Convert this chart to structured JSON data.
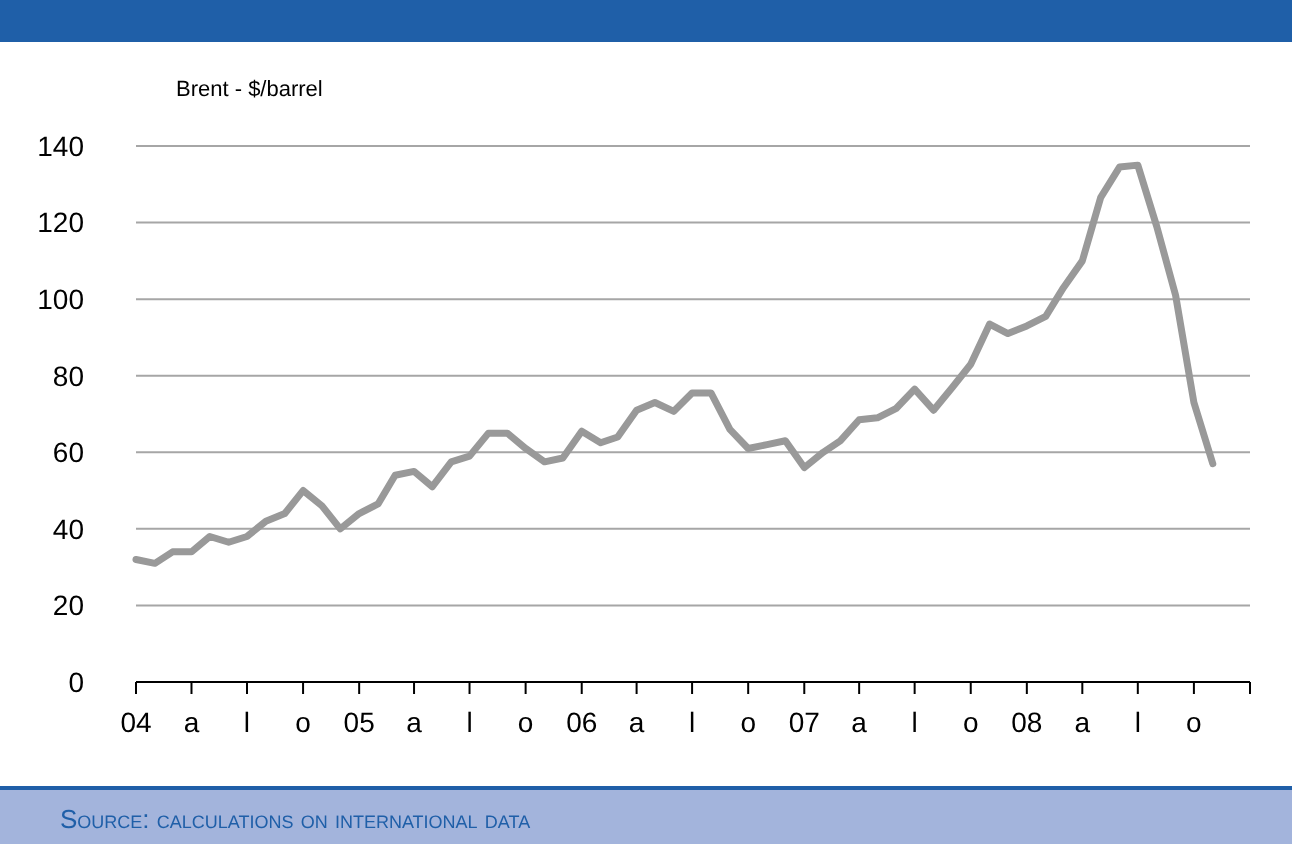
{
  "chart_data": {
    "type": "line",
    "ylabel": "Brent - $/barrel",
    "x": [
      "2004-01",
      "2004-02",
      "2004-03",
      "2004-04",
      "2004-05",
      "2004-06",
      "2004-07",
      "2004-08",
      "2004-09",
      "2004-10",
      "2004-11",
      "2004-12",
      "2005-01",
      "2005-02",
      "2005-03",
      "2005-04",
      "2005-05",
      "2005-06",
      "2005-07",
      "2005-08",
      "2005-09",
      "2005-10",
      "2005-11",
      "2005-12",
      "2006-01",
      "2006-02",
      "2006-03",
      "2006-04",
      "2006-05",
      "2006-06",
      "2006-07",
      "2006-08",
      "2006-09",
      "2006-10",
      "2006-11",
      "2006-12",
      "2007-01",
      "2007-02",
      "2007-03",
      "2007-04",
      "2007-05",
      "2007-06",
      "2007-07",
      "2007-08",
      "2007-09",
      "2007-10",
      "2007-11",
      "2007-12",
      "2008-01",
      "2008-02",
      "2008-03",
      "2008-04",
      "2008-05",
      "2008-06",
      "2008-07",
      "2008-08",
      "2008-09",
      "2008-10",
      "2008-11"
    ],
    "series": [
      {
        "color": "#999999",
        "values": [
          32,
          31,
          34,
          34,
          38,
          36.5,
          38,
          42,
          44,
          50,
          46,
          40,
          44,
          46.5,
          54,
          55,
          51,
          57.5,
          59,
          65,
          65,
          61,
          57.5,
          58.5,
          65.5,
          62.5,
          64,
          71,
          73,
          70.7,
          75.5,
          75.5,
          66,
          61,
          62,
          63,
          56,
          60,
          63,
          68.5,
          69,
          71.5,
          76.5,
          71,
          77,
          83,
          93.5,
          91,
          93,
          95.5,
          103,
          110,
          126.5,
          134.5,
          135,
          119,
          101,
          73,
          57
        ]
      }
    ],
    "xlim": [
      "2004-01",
      "2009-01"
    ],
    "xticks": [
      {
        "value": "2004-01",
        "label": "04"
      },
      {
        "value": "2004-04",
        "label": "a"
      },
      {
        "value": "2004-07",
        "label": "l"
      },
      {
        "value": "2004-10",
        "label": "o"
      },
      {
        "value": "2005-01",
        "label": "05"
      },
      {
        "value": "2005-04",
        "label": "a"
      },
      {
        "value": "2005-07",
        "label": "l"
      },
      {
        "value": "2005-10",
        "label": "o"
      },
      {
        "value": "2006-01",
        "label": "06"
      },
      {
        "value": "2006-04",
        "label": "a"
      },
      {
        "value": "2006-07",
        "label": "l"
      },
      {
        "value": "2006-10",
        "label": "o"
      },
      {
        "value": "2007-01",
        "label": "07"
      },
      {
        "value": "2007-04",
        "label": "a"
      },
      {
        "value": "2007-07",
        "label": "l"
      },
      {
        "value": "2007-10",
        "label": "o"
      },
      {
        "value": "2008-01",
        "label": "08"
      },
      {
        "value": "2008-04",
        "label": "a"
      },
      {
        "value": "2008-07",
        "label": "l"
      },
      {
        "value": "2008-10",
        "label": "o"
      },
      {
        "value": "2009-01",
        "label": null
      }
    ],
    "ylim": [
      0,
      140
    ],
    "yticks": [
      0,
      20,
      40,
      60,
      80,
      100,
      120,
      140
    ],
    "grid": "y",
    "annotations": [
      "Source: calculations on international data"
    ]
  }
}
